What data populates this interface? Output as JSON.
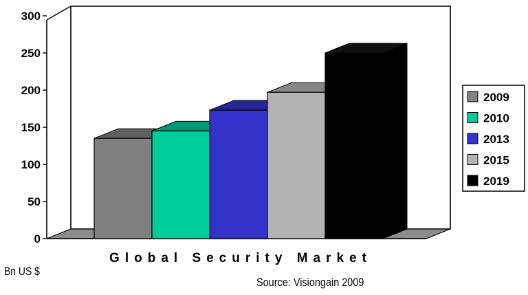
{
  "chart_data": {
    "type": "bar",
    "title": "",
    "xlabel": "Global Security Market",
    "ylabel": "",
    "categories": [
      "Global Security Market"
    ],
    "series": [
      {
        "name": "2009",
        "values": [
          135
        ],
        "color": "#808080"
      },
      {
        "name": "2010",
        "values": [
          145
        ],
        "color": "#00cc99"
      },
      {
        "name": "2013",
        "values": [
          173
        ],
        "color": "#3333cc"
      },
      {
        "name": "2015",
        "values": [
          197
        ],
        "color": "#b3b3b3"
      },
      {
        "name": "2019",
        "values": [
          250
        ],
        "color": "#000000"
      }
    ],
    "ylim": [
      0,
      300
    ],
    "yticks": [
      "0",
      "50",
      "100",
      "150",
      "200",
      "250",
      "300"
    ],
    "legend_position": "right",
    "grid": false,
    "three_d": true
  },
  "notes": {
    "unit": "Bn US $",
    "source": "Source: Visiongain 2009"
  }
}
